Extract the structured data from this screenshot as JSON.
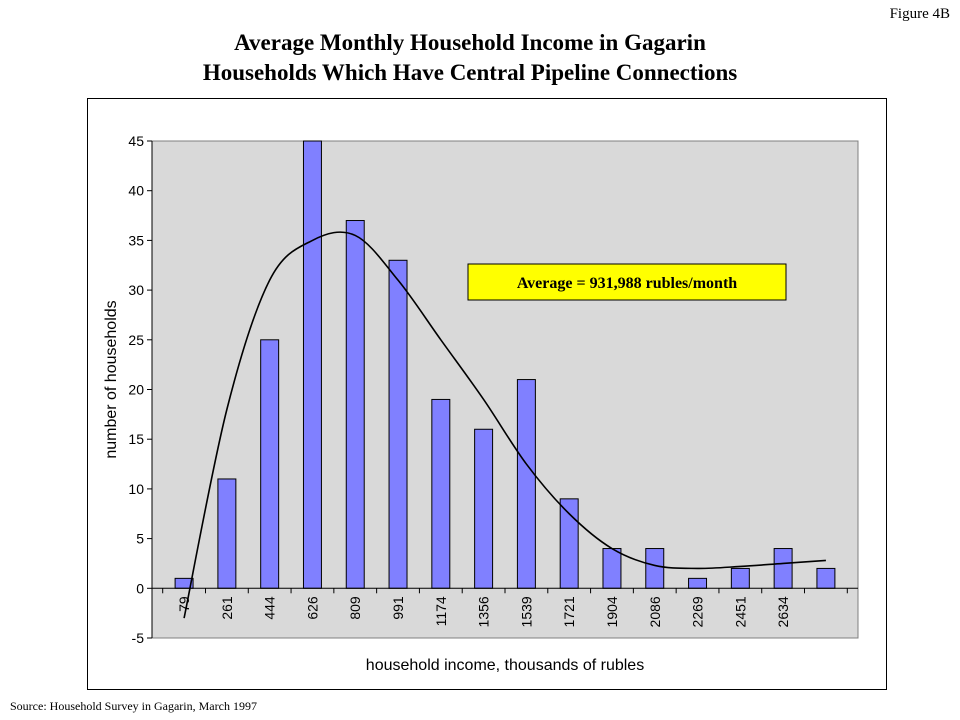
{
  "figure_label": "Figure 4B",
  "title_lines": [
    "Average Monthly Household Income in Gagarin",
    "Households Which Have Central Pipeline Connections"
  ],
  "source": "Source: Household Survey in Gagarin, March 1997",
  "colors": {
    "plot_background": "#d9d9d9",
    "bar_fill": "#8080ff",
    "bar_stroke": "#000000",
    "annotation_fill": "#ffff00",
    "trendline": "#000000"
  },
  "chart_data": {
    "type": "bar",
    "xlabel": "household income, thousands of rubles",
    "ylabel": "number of households",
    "ylim": [
      -5,
      45
    ],
    "yticks": [
      -5,
      0,
      5,
      10,
      15,
      20,
      25,
      30,
      35,
      40,
      45
    ],
    "grid": false,
    "categories": [
      "79",
      "261",
      "444",
      "626",
      "809",
      "991",
      "1174",
      "1356",
      "1539",
      "1721",
      "1904",
      "2086",
      "2269",
      "2451",
      "2634",
      ""
    ],
    "values": [
      1,
      11,
      25,
      45,
      37,
      33,
      19,
      16,
      21,
      9,
      4,
      4,
      1,
      2,
      4,
      2
    ],
    "trendline": {
      "type": "polynomial",
      "values": [
        -3,
        18,
        31,
        35,
        35.5,
        31,
        25,
        19,
        12.5,
        7.5,
        4,
        2.3,
        2,
        2.2,
        2.5,
        2.8
      ]
    },
    "annotation": "Average = 931,988 rubles/month"
  }
}
